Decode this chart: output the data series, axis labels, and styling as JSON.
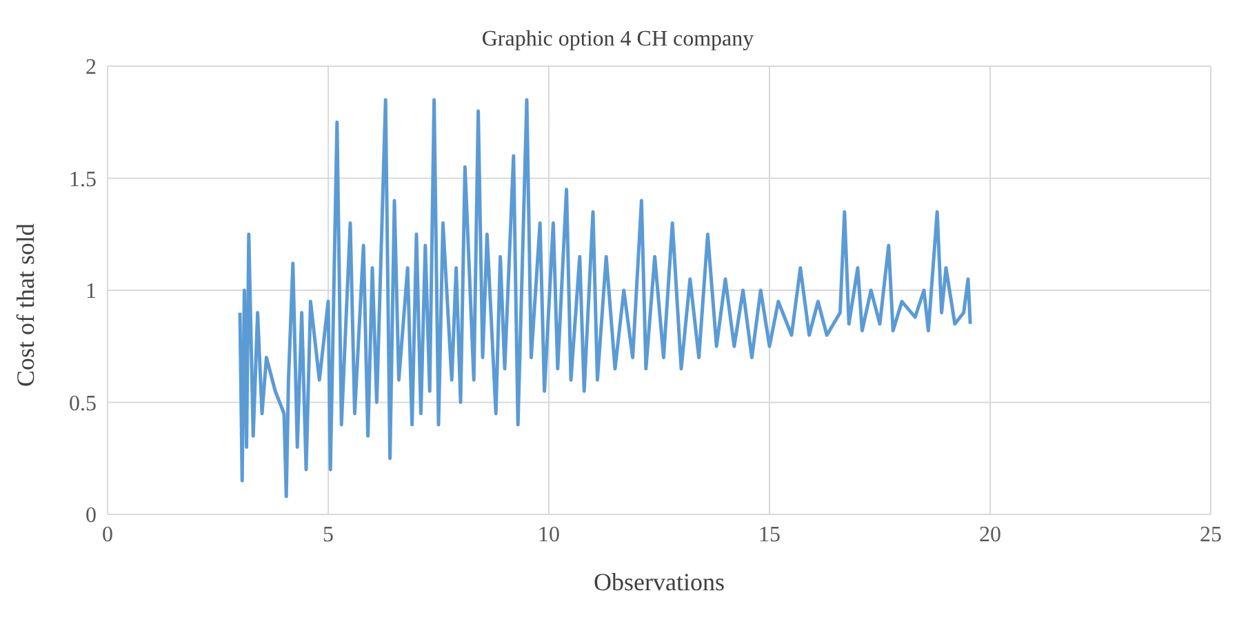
{
  "chart_data": {
    "type": "line",
    "title": "Graphic option 4 CH company",
    "xlabel": "Observations",
    "ylabel": "Cost of that sold",
    "xlim": [
      0,
      25
    ],
    "xticks": [
      0,
      5,
      10,
      15,
      20,
      25
    ],
    "ylim": [
      0,
      2
    ],
    "yticks": [
      0,
      0.5,
      1,
      1.5,
      2
    ],
    "grid": true,
    "legend": false,
    "marker": "none",
    "line_style": "solid",
    "series": [
      {
        "color": "#5b9bd5",
        "x": [
          3.0,
          3.05,
          3.1,
          3.15,
          3.2,
          3.3,
          3.4,
          3.5,
          3.6,
          3.8,
          4.0,
          4.05,
          4.1,
          4.2,
          4.3,
          4.4,
          4.5,
          4.6,
          4.8,
          5.0,
          5.05,
          5.2,
          5.3,
          5.5,
          5.6,
          5.8,
          5.9,
          6.0,
          6.1,
          6.3,
          6.4,
          6.5,
          6.6,
          6.8,
          6.9,
          7.0,
          7.1,
          7.2,
          7.3,
          7.4,
          7.5,
          7.6,
          7.8,
          7.9,
          8.0,
          8.1,
          8.3,
          8.4,
          8.5,
          8.6,
          8.8,
          8.9,
          9.0,
          9.2,
          9.3,
          9.5,
          9.6,
          9.8,
          9.9,
          10.1,
          10.2,
          10.4,
          10.5,
          10.7,
          10.8,
          11.0,
          11.1,
          11.3,
          11.5,
          11.7,
          11.9,
          12.1,
          12.2,
          12.4,
          12.6,
          12.8,
          13.0,
          13.2,
          13.4,
          13.6,
          13.8,
          14.0,
          14.2,
          14.4,
          14.6,
          14.8,
          15.0,
          15.2,
          15.5,
          15.7,
          15.9,
          16.1,
          16.3,
          16.6,
          16.7,
          16.8,
          17.0,
          17.1,
          17.3,
          17.5,
          17.7,
          17.8,
          18.0,
          18.3,
          18.5,
          18.6,
          18.8,
          18.9,
          19.0,
          19.2,
          19.4,
          19.5,
          19.55
        ],
        "values": [
          0.9,
          0.15,
          1.0,
          0.3,
          1.25,
          0.35,
          0.9,
          0.45,
          0.7,
          0.55,
          0.45,
          0.08,
          0.6,
          1.12,
          0.3,
          0.9,
          0.2,
          0.95,
          0.6,
          0.95,
          0.2,
          1.75,
          0.4,
          1.3,
          0.45,
          1.2,
          0.35,
          1.1,
          0.5,
          1.85,
          0.25,
          1.4,
          0.6,
          1.1,
          0.4,
          1.25,
          0.45,
          1.2,
          0.55,
          1.85,
          0.4,
          1.3,
          0.6,
          1.1,
          0.5,
          1.55,
          0.6,
          1.8,
          0.7,
          1.25,
          0.45,
          1.15,
          0.65,
          1.6,
          0.4,
          1.85,
          0.7,
          1.3,
          0.55,
          1.3,
          0.65,
          1.45,
          0.6,
          1.15,
          0.55,
          1.35,
          0.6,
          1.15,
          0.65,
          1.0,
          0.7,
          1.4,
          0.65,
          1.15,
          0.7,
          1.3,
          0.65,
          1.05,
          0.7,
          1.25,
          0.75,
          1.05,
          0.75,
          1.0,
          0.7,
          1.0,
          0.75,
          0.95,
          0.8,
          1.1,
          0.8,
          0.95,
          0.8,
          0.9,
          1.35,
          0.85,
          1.1,
          0.82,
          1.0,
          0.85,
          1.2,
          0.82,
          0.95,
          0.88,
          1.0,
          0.82,
          1.35,
          0.9,
          1.1,
          0.85,
          0.9,
          1.05,
          0.85
        ]
      }
    ]
  }
}
